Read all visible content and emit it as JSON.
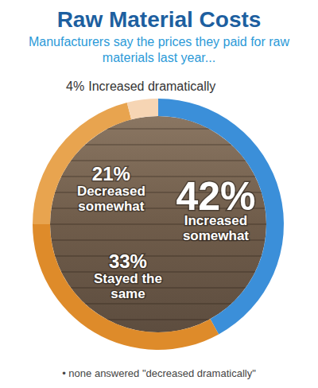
{
  "chart_data": {
    "type": "donut",
    "title": "Raw Material Costs",
    "subtitle": "Manufacturers say the prices they paid for raw materials last year...",
    "categories": [
      "Increased somewhat",
      "Stayed the same",
      "Decreased somewhat",
      "Increased dramatically"
    ],
    "values": [
      42,
      33,
      21,
      4
    ],
    "value_labels": [
      "42%",
      "33%",
      "21%",
      "4%"
    ],
    "colors": [
      "#3b8fd9",
      "#de8b2a",
      "#e8a44f",
      "#f6d5b4"
    ],
    "data_labels": true,
    "annotation": "• none answered \"decreased dramatically\""
  }
}
